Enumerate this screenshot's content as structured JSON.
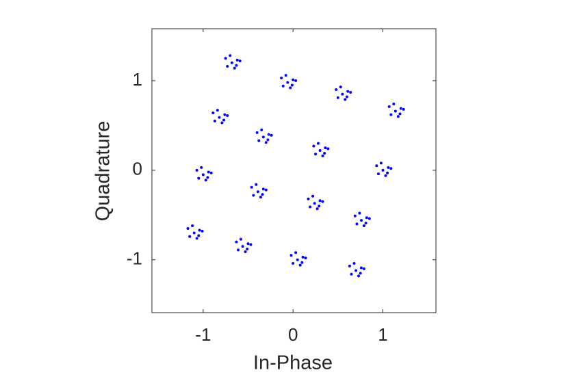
{
  "chart_data": {
    "type": "scatter",
    "xlabel": "In-Phase",
    "ylabel": "Quadrature",
    "color": "#0000ff",
    "xlim": [
      -1.57,
      1.59
    ],
    "ylim": [
      -1.59,
      1.58
    ],
    "xticks": [
      -1,
      0,
      1
    ],
    "yticks": [
      -1,
      0,
      1
    ],
    "grid": false,
    "box": true,
    "x": [
      -0.33,
      -0.27,
      -0.38,
      -0.3,
      -0.4,
      -0.24,
      -0.35,
      -0.28,
      0.3,
      0.36,
      0.25,
      0.33,
      0.23,
      0.39,
      0.28,
      0.35,
      -0.39,
      -0.33,
      -0.44,
      -0.36,
      -0.46,
      -0.3,
      -0.41,
      -0.34,
      0.24,
      0.3,
      0.19,
      0.27,
      0.17,
      0.33,
      0.22,
      0.29,
      -0.68,
      -0.62,
      -0.73,
      -0.65,
      -0.75,
      -0.59,
      -0.7,
      -0.63,
      -0.06,
      0.0,
      -0.11,
      -0.03,
      -0.13,
      0.03,
      -0.08,
      -0.01,
      0.55,
      0.61,
      0.5,
      0.58,
      0.48,
      0.64,
      0.53,
      0.6,
      1.14,
      1.2,
      1.09,
      1.17,
      1.07,
      1.23,
      1.12,
      1.19,
      -0.82,
      -0.76,
      -0.87,
      -0.79,
      -0.89,
      -0.73,
      -0.84,
      -0.77,
      -1.0,
      -0.94,
      -1.05,
      -0.97,
      -1.07,
      -0.91,
      -1.02,
      -0.95,
      1.0,
      1.06,
      0.95,
      1.03,
      0.93,
      1.09,
      0.98,
      1.05,
      0.76,
      0.82,
      0.71,
      0.79,
      0.69,
      0.85,
      0.74,
      0.81,
      -1.1,
      -1.04,
      -1.15,
      -1.07,
      -1.17,
      -1.01,
      -1.12,
      -1.05,
      -0.56,
      -0.5,
      -0.61,
      -0.53,
      -0.63,
      -0.47,
      -0.58,
      -0.51,
      0.05,
      0.11,
      0.0,
      0.08,
      -0.02,
      0.14,
      0.03,
      0.1,
      0.7,
      0.76,
      0.65,
      0.73,
      0.63,
      0.79,
      0.68,
      0.75
    ],
    "values": [
      0.37,
      0.4,
      0.33,
      0.31,
      0.42,
      0.39,
      0.45,
      0.34,
      0.22,
      0.25,
      0.18,
      0.16,
      0.27,
      0.24,
      0.3,
      0.19,
      -0.24,
      -0.21,
      -0.28,
      -0.3,
      -0.19,
      -0.22,
      -0.16,
      -0.27,
      -0.37,
      -0.34,
      -0.41,
      -0.43,
      -0.32,
      -0.35,
      -0.29,
      -0.4,
      1.2,
      1.23,
      1.16,
      1.14,
      1.25,
      1.22,
      1.28,
      1.17,
      0.98,
      1.01,
      0.94,
      0.92,
      1.03,
      1.0,
      1.06,
      0.95,
      0.85,
      0.88,
      0.81,
      0.79,
      0.9,
      0.87,
      0.93,
      0.82,
      0.66,
      0.69,
      0.62,
      0.6,
      0.71,
      0.68,
      0.74,
      0.63,
      0.59,
      0.62,
      0.55,
      0.53,
      0.64,
      0.61,
      0.67,
      0.56,
      -0.05,
      -0.02,
      -0.09,
      -0.11,
      0.0,
      -0.03,
      0.03,
      -0.08,
      0.0,
      0.03,
      -0.04,
      -0.06,
      0.05,
      0.02,
      0.08,
      -0.03,
      -0.56,
      -0.53,
      -0.6,
      -0.62,
      -0.51,
      -0.54,
      -0.48,
      -0.59,
      -0.7,
      -0.67,
      -0.74,
      -0.76,
      -0.65,
      -0.68,
      -0.62,
      -0.73,
      -0.85,
      -0.82,
      -0.89,
      -0.91,
      -0.8,
      -0.83,
      -0.77,
      -0.88,
      -1.0,
      -0.97,
      -1.04,
      -1.06,
      -0.95,
      -0.98,
      -0.92,
      -1.03,
      -1.12,
      -1.09,
      -1.16,
      -1.18,
      -1.07,
      -1.1,
      -1.04,
      -1.15
    ]
  }
}
